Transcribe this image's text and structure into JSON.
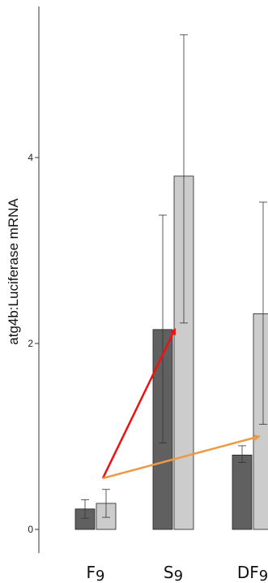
{
  "chart_data": {
    "type": "bar",
    "ylabel": "atg4b:Luciferase mRNA",
    "xlabel": "",
    "categories": [
      "F9",
      "S9",
      "DF9"
    ],
    "ylim": [
      0,
      5.6
    ],
    "yticks": [
      0,
      2,
      4
    ],
    "ytick_labels": [
      "0",
      "2",
      "4"
    ],
    "grid": false,
    "series": [
      {
        "color": "#606060",
        "values": [
          0.22,
          2.15,
          0.8
        ],
        "err_low": [
          0.12,
          0.93,
          0.72
        ],
        "err_high": [
          0.32,
          3.38,
          0.9
        ]
      },
      {
        "color": "#cccccc",
        "values": [
          0.28,
          3.8,
          2.32
        ],
        "err_low": [
          0.13,
          2.22,
          1.13
        ],
        "err_high": [
          0.43,
          5.32,
          3.52
        ]
      }
    ],
    "arrows": [
      {
        "from": [
          0,
          0.55
        ],
        "to": [
          1,
          2.15
        ],
        "color": "#ee1111"
      },
      {
        "from": [
          0,
          0.55
        ],
        "to": [
          2,
          1.0
        ],
        "color": "#ee9944"
      }
    ]
  }
}
